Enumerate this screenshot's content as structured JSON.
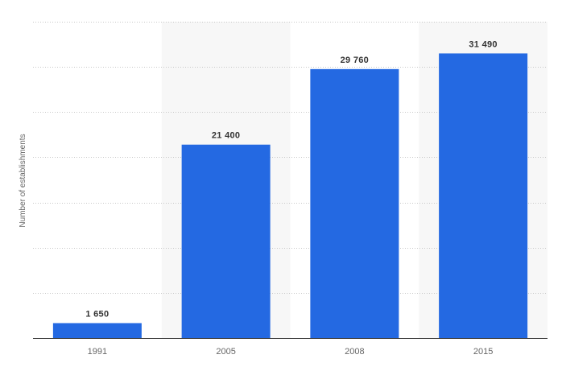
{
  "chart_data": {
    "type": "bar",
    "categories": [
      "1991",
      "2005",
      "2008",
      "2015"
    ],
    "values": [
      1650,
      21400,
      29760,
      31490
    ],
    "data_labels": [
      "1 650",
      "21 400",
      "29 760",
      "31 490"
    ],
    "title": "",
    "xlabel": "",
    "ylabel": "Number of establishments",
    "ylim": [
      0,
      35000
    ],
    "grid": true,
    "legend": "none",
    "colors": {
      "bar": "#2469e2",
      "label_text": "#333333",
      "tick_text": "#666666",
      "axis": "#333333",
      "grid": "#c8c8c8",
      "band": "#f7f7f7"
    }
  }
}
